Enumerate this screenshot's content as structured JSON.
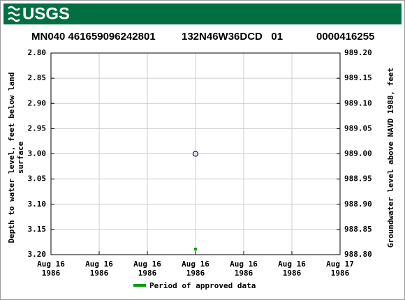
{
  "header": {
    "logo": "USGS"
  },
  "chart_data": {
    "type": "scatter",
    "title": [
      "MN040 461659096242801",
      "132N46W36DCD   01",
      "0000416255"
    ],
    "ylabel": [
      "Depth to water level, feet below land",
      "surface"
    ],
    "y2label": "Groundwater level above NAVD 1988, feet",
    "xlim": [
      0,
      24
    ],
    "xticks": [
      {
        "value": 0,
        "label": [
          "Aug 16",
          "1986"
        ]
      },
      {
        "value": 4,
        "label": [
          "Aug 16",
          "1986"
        ]
      },
      {
        "value": 8,
        "label": [
          "Aug 16",
          "1986"
        ]
      },
      {
        "value": 12,
        "label": [
          "Aug 16",
          "1986"
        ]
      },
      {
        "value": 16,
        "label": [
          "Aug 16",
          "1986"
        ]
      },
      {
        "value": 20,
        "label": [
          "Aug 16",
          "1986"
        ]
      },
      {
        "value": 24,
        "label": [
          "Aug 17",
          "1986"
        ]
      }
    ],
    "ylim": [
      3.2,
      2.8
    ],
    "yticks": [
      {
        "value": 2.8,
        "label": "2.80"
      },
      {
        "value": 2.85,
        "label": "2.85"
      },
      {
        "value": 2.9,
        "label": "2.90"
      },
      {
        "value": 2.95,
        "label": "2.95"
      },
      {
        "value": 3.0,
        "label": "3.00"
      },
      {
        "value": 3.05,
        "label": "3.05"
      },
      {
        "value": 3.1,
        "label": "3.10"
      },
      {
        "value": 3.15,
        "label": "3.15"
      },
      {
        "value": 3.2,
        "label": "3.20"
      }
    ],
    "y2lim": [
      988.8,
      989.2
    ],
    "y2ticks": [
      {
        "value": 989.2,
        "label": "989.20"
      },
      {
        "value": 989.15,
        "label": "989.15"
      },
      {
        "value": 989.1,
        "label": "989.10"
      },
      {
        "value": 989.05,
        "label": "989.05"
      },
      {
        "value": 989.0,
        "label": "989.00"
      },
      {
        "value": 988.95,
        "label": "988.95"
      },
      {
        "value": 988.9,
        "label": "988.90"
      },
      {
        "value": 988.85,
        "label": "988.85"
      },
      {
        "value": 988.8,
        "label": "988.80"
      }
    ],
    "grid": true,
    "series": [
      {
        "x": [
          12
        ],
        "values": [
          3.0
        ],
        "color": "#0000cc"
      }
    ],
    "approved": {
      "name": "Period of approved data",
      "color": "#0a9a0a",
      "x": [
        12
      ]
    }
  }
}
